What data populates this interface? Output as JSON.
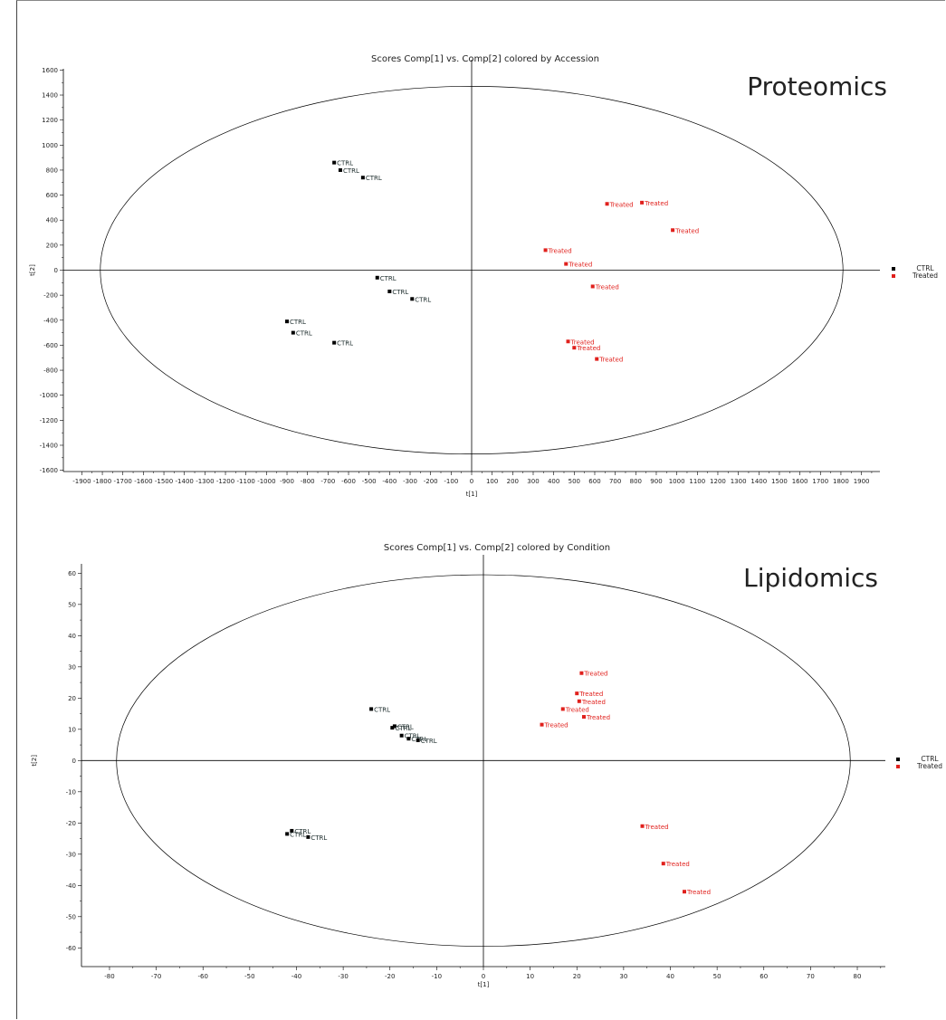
{
  "chart_data": [
    {
      "type": "scatter",
      "title": "Scores Comp[1] vs. Comp[2] colored by Accession",
      "overlay_label": "Proteomics",
      "xlabel": "t[1]",
      "ylabel": "t[2]",
      "xlim": [
        -1990,
        1990
      ],
      "ylim": [
        -1610,
        1610
      ],
      "xticks": [
        -1900,
        -1800,
        -1700,
        -1600,
        -1500,
        -1400,
        -1300,
        -1200,
        -1100,
        -1000,
        -900,
        -800,
        -700,
        -600,
        -500,
        -400,
        -300,
        -200,
        -100,
        0,
        100,
        200,
        300,
        400,
        500,
        600,
        700,
        800,
        900,
        1000,
        1100,
        1200,
        1300,
        1400,
        1500,
        1600,
        1700,
        1800,
        1900
      ],
      "yticks": [
        -1600,
        -1400,
        -1200,
        -1000,
        -800,
        -600,
        -400,
        -200,
        0,
        200,
        400,
        600,
        800,
        1000,
        1200,
        1400,
        1600
      ],
      "ellipse": {
        "rx": 1810,
        "ry": 1470
      },
      "legend": {
        "position": "right",
        "entries": [
          {
            "label": "CTRL",
            "color": "#000000"
          },
          {
            "label": "Treated",
            "color": "#e0201c"
          }
        ]
      },
      "series": [
        {
          "name": "CTRL",
          "color": "#000000",
          "points": [
            {
              "x": -670,
              "y": 860,
              "label": "CTRL"
            },
            {
              "x": -640,
              "y": 800,
              "label": "CTRL"
            },
            {
              "x": -530,
              "y": 740,
              "label": "CTRL"
            },
            {
              "x": -460,
              "y": -60,
              "label": "CTRL"
            },
            {
              "x": -400,
              "y": -170,
              "label": "CTRL"
            },
            {
              "x": -290,
              "y": -230,
              "label": "CTRL"
            },
            {
              "x": -900,
              "y": -410,
              "label": "CTRL"
            },
            {
              "x": -870,
              "y": -500,
              "label": "CTRL"
            },
            {
              "x": -670,
              "y": -580,
              "label": "CTRL"
            }
          ]
        },
        {
          "name": "Treated",
          "color": "#e0201c",
          "points": [
            {
              "x": 660,
              "y": 530,
              "label": "Treated"
            },
            {
              "x": 830,
              "y": 540,
              "label": "Treated"
            },
            {
              "x": 980,
              "y": 320,
              "label": "Treated"
            },
            {
              "x": 360,
              "y": 160,
              "label": "Treated"
            },
            {
              "x": 460,
              "y": 50,
              "label": "Treated"
            },
            {
              "x": 590,
              "y": -130,
              "label": "Treated"
            },
            {
              "x": 470,
              "y": -570,
              "label": "Treated"
            },
            {
              "x": 500,
              "y": -620,
              "label": "Treated"
            },
            {
              "x": 610,
              "y": -710,
              "label": "Treated"
            }
          ]
        }
      ]
    },
    {
      "type": "scatter",
      "title": "Scores Comp[1] vs. Comp[2] colored by Condition",
      "overlay_label": "Lipidomics",
      "xlabel": "t[1]",
      "ylabel": "t[2]",
      "xlim": [
        -86,
        86
      ],
      "ylim": [
        -66,
        63
      ],
      "xticks": [
        -80,
        -70,
        -60,
        -50,
        -40,
        -30,
        -20,
        -10,
        0,
        10,
        20,
        30,
        40,
        50,
        60,
        70,
        80
      ],
      "yticks": [
        -60,
        -50,
        -40,
        -30,
        -20,
        -10,
        0,
        10,
        20,
        30,
        40,
        50,
        60
      ],
      "ellipse": {
        "rx": 78.5,
        "ry": 59.5
      },
      "legend": {
        "position": "right",
        "entries": [
          {
            "label": "CTRL",
            "color": "#000000"
          },
          {
            "label": "Treated",
            "color": "#e0201c"
          }
        ]
      },
      "series": [
        {
          "name": "CTRL",
          "color": "#000000",
          "points": [
            {
              "x": -24,
              "y": 16.5,
              "label": "CTRL"
            },
            {
              "x": -19,
              "y": 11,
              "label": "CTRL"
            },
            {
              "x": -19.5,
              "y": 10.5,
              "label": "CTRL"
            },
            {
              "x": -17.5,
              "y": 8,
              "label": "CTRL"
            },
            {
              "x": -16,
              "y": 7,
              "label": "CTRL"
            },
            {
              "x": -14,
              "y": 6.5,
              "label": "CTRL"
            },
            {
              "x": -41,
              "y": -22.5,
              "label": "CTRL"
            },
            {
              "x": -42,
              "y": -23.5,
              "label": "CTRL"
            },
            {
              "x": -37.5,
              "y": -24.5,
              "label": "CTRL"
            }
          ]
        },
        {
          "name": "Treated",
          "color": "#e0201c",
          "points": [
            {
              "x": 21,
              "y": 28,
              "label": "Treated"
            },
            {
              "x": 20,
              "y": 21.5,
              "label": "Treated"
            },
            {
              "x": 20.5,
              "y": 19,
              "label": "Treated"
            },
            {
              "x": 17,
              "y": 16.5,
              "label": "Treated"
            },
            {
              "x": 21.5,
              "y": 14,
              "label": "Treated"
            },
            {
              "x": 12.5,
              "y": 11.5,
              "label": "Treated"
            },
            {
              "x": 34,
              "y": -21,
              "label": "Treated"
            },
            {
              "x": 38.5,
              "y": -33,
              "label": "Treated"
            },
            {
              "x": 43,
              "y": -42,
              "label": "Treated"
            }
          ]
        }
      ]
    }
  ]
}
